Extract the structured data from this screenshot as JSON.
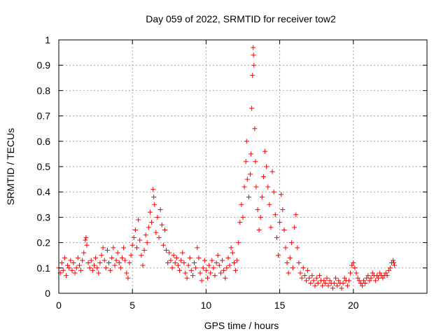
{
  "chart_data": {
    "type": "scatter",
    "title": "Day 059 of 2022, SRMTID for receiver tow2",
    "xlabel": "GPS time / hours",
    "ylabel": "SRMTID / TECUs",
    "xlim": [
      0,
      25
    ],
    "ylim": [
      0,
      1
    ],
    "xticks": [
      0,
      5,
      10,
      15,
      20
    ],
    "yticks": [
      0,
      0.1,
      0.2,
      0.3,
      0.4,
      0.5,
      0.6,
      0.7,
      0.8,
      0.9,
      1
    ],
    "xtick_labels": [
      "0",
      "5",
      "10",
      "15",
      "20"
    ],
    "ytick_labels": [
      "0",
      "0.1",
      "0.2",
      "0.3",
      "0.4",
      "0.5",
      "0.6",
      "0.7",
      "0.8",
      "0.9",
      "1"
    ],
    "grid": true,
    "marker": "+",
    "color": "#ff0000",
    "series": [
      {
        "name": "SRMTID",
        "points": [
          [
            0.0,
            0.1
          ],
          [
            0.1,
            0.08
          ],
          [
            0.2,
            0.12
          ],
          [
            0.3,
            0.09
          ],
          [
            0.4,
            0.14
          ],
          [
            0.5,
            0.07
          ],
          [
            0.6,
            0.11
          ],
          [
            0.7,
            0.1
          ],
          [
            0.8,
            0.13
          ],
          [
            0.9,
            0.09
          ],
          [
            1.0,
            0.12
          ],
          [
            1.1,
            0.08
          ],
          [
            1.2,
            0.1
          ],
          [
            1.3,
            0.14
          ],
          [
            1.4,
            0.11
          ],
          [
            1.5,
            0.09
          ],
          [
            1.6,
            0.13
          ],
          [
            1.7,
            0.16
          ],
          [
            1.8,
            0.21
          ],
          [
            1.85,
            0.22
          ],
          [
            1.9,
            0.19
          ],
          [
            2.0,
            0.12
          ],
          [
            2.1,
            0.1
          ],
          [
            2.2,
            0.13
          ],
          [
            2.3,
            0.09
          ],
          [
            2.4,
            0.11
          ],
          [
            2.5,
            0.14
          ],
          [
            2.6,
            0.1
          ],
          [
            2.7,
            0.08
          ],
          [
            2.8,
            0.12
          ],
          [
            2.9,
            0.15
          ],
          [
            3.0,
            0.18
          ],
          [
            3.1,
            0.13
          ],
          [
            3.2,
            0.1
          ],
          [
            3.3,
            0.17
          ],
          [
            3.4,
            0.12
          ],
          [
            3.5,
            0.09
          ],
          [
            3.6,
            0.14
          ],
          [
            3.7,
            0.18
          ],
          [
            3.8,
            0.11
          ],
          [
            3.9,
            0.13
          ],
          [
            4.0,
            0.16
          ],
          [
            4.1,
            0.12
          ],
          [
            4.2,
            0.1
          ],
          [
            4.3,
            0.14
          ],
          [
            4.4,
            0.18
          ],
          [
            4.5,
            0.13
          ],
          [
            4.6,
            0.08
          ],
          [
            4.7,
            0.06
          ],
          [
            4.8,
            0.12
          ],
          [
            4.9,
            0.15
          ],
          [
            5.0,
            0.19
          ],
          [
            5.1,
            0.22
          ],
          [
            5.2,
            0.25
          ],
          [
            5.3,
            0.18
          ],
          [
            5.4,
            0.29
          ],
          [
            5.5,
            0.21
          ],
          [
            5.6,
            0.15
          ],
          [
            5.7,
            0.11
          ],
          [
            5.8,
            0.17
          ],
          [
            5.9,
            0.23
          ],
          [
            6.0,
            0.2
          ],
          [
            6.1,
            0.26
          ],
          [
            6.2,
            0.32
          ],
          [
            6.3,
            0.28
          ],
          [
            6.4,
            0.41
          ],
          [
            6.45,
            0.38
          ],
          [
            6.5,
            0.35
          ],
          [
            6.6,
            0.24
          ],
          [
            6.7,
            0.3
          ],
          [
            6.8,
            0.22
          ],
          [
            6.9,
            0.33
          ],
          [
            7.0,
            0.27
          ],
          [
            7.1,
            0.19
          ],
          [
            7.2,
            0.25
          ],
          [
            7.3,
            0.17
          ],
          [
            7.4,
            0.12
          ],
          [
            7.5,
            0.16
          ],
          [
            7.6,
            0.13
          ],
          [
            7.7,
            0.1
          ],
          [
            7.8,
            0.15
          ],
          [
            7.9,
            0.12
          ],
          [
            8.0,
            0.14
          ],
          [
            8.1,
            0.11
          ],
          [
            8.2,
            0.09
          ],
          [
            8.3,
            0.13
          ],
          [
            8.4,
            0.16
          ],
          [
            8.5,
            0.12
          ],
          [
            8.6,
            0.08
          ],
          [
            8.7,
            0.06
          ],
          [
            8.8,
            0.11
          ],
          [
            8.9,
            0.14
          ],
          [
            9.0,
            0.09
          ],
          [
            9.1,
            0.07
          ],
          [
            9.2,
            0.12
          ],
          [
            9.3,
            0.1
          ],
          [
            9.4,
            0.18
          ],
          [
            9.5,
            0.14
          ],
          [
            9.6,
            0.08
          ],
          [
            9.7,
            0.05
          ],
          [
            9.8,
            0.1
          ],
          [
            9.9,
            0.13
          ],
          [
            10.0,
            0.09
          ],
          [
            10.1,
            0.06
          ],
          [
            10.2,
            0.11
          ],
          [
            10.3,
            0.08
          ],
          [
            10.4,
            0.13
          ],
          [
            10.5,
            0.1
          ],
          [
            10.6,
            0.07
          ],
          [
            10.7,
            0.12
          ],
          [
            10.8,
            0.15
          ],
          [
            10.9,
            0.11
          ],
          [
            11.0,
            0.08
          ],
          [
            11.1,
            0.13
          ],
          [
            11.2,
            0.09
          ],
          [
            11.3,
            0.06
          ],
          [
            11.4,
            0.1
          ],
          [
            11.5,
            0.14
          ],
          [
            11.6,
            0.11
          ],
          [
            11.7,
            0.18
          ],
          [
            11.8,
            0.16
          ],
          [
            11.9,
            0.12
          ],
          [
            12.0,
            0.09
          ],
          [
            12.1,
            0.13
          ],
          [
            12.2,
            0.2
          ],
          [
            12.3,
            0.28
          ],
          [
            12.4,
            0.35
          ],
          [
            12.5,
            0.3
          ],
          [
            12.6,
            0.42
          ],
          [
            12.7,
            0.52
          ],
          [
            12.75,
            0.6
          ],
          [
            12.8,
            0.45
          ],
          [
            12.9,
            0.38
          ],
          [
            13.0,
            0.47
          ],
          [
            13.05,
            0.55
          ],
          [
            13.1,
            0.73
          ],
          [
            13.15,
            0.86
          ],
          [
            13.2,
            0.97
          ],
          [
            13.22,
            0.94
          ],
          [
            13.25,
            0.9
          ],
          [
            13.3,
            0.65
          ],
          [
            13.35,
            0.52
          ],
          [
            13.4,
            0.42
          ],
          [
            13.5,
            0.33
          ],
          [
            13.6,
            0.25
          ],
          [
            13.7,
            0.3
          ],
          [
            13.8,
            0.38
          ],
          [
            13.9,
            0.46
          ],
          [
            14.0,
            0.56
          ],
          [
            14.1,
            0.5
          ],
          [
            14.2,
            0.42
          ],
          [
            14.3,
            0.35
          ],
          [
            14.4,
            0.26
          ],
          [
            14.5,
            0.48
          ],
          [
            14.6,
            0.4
          ],
          [
            14.7,
            0.31
          ],
          [
            14.8,
            0.22
          ],
          [
            14.9,
            0.15
          ],
          [
            15.0,
            0.28
          ],
          [
            15.1,
            0.39
          ],
          [
            15.2,
            0.33
          ],
          [
            15.3,
            0.25
          ],
          [
            15.4,
            0.18
          ],
          [
            15.5,
            0.12
          ],
          [
            15.6,
            0.08
          ],
          [
            15.7,
            0.14
          ],
          [
            15.8,
            0.2
          ],
          [
            15.9,
            0.1
          ],
          [
            16.0,
            0.26
          ],
          [
            16.1,
            0.31
          ],
          [
            16.2,
            0.18
          ],
          [
            16.3,
            0.12
          ],
          [
            16.4,
            0.08
          ],
          [
            16.5,
            0.06
          ],
          [
            16.6,
            0.1
          ],
          [
            16.7,
            0.07
          ],
          [
            16.8,
            0.05
          ],
          [
            16.9,
            0.09
          ],
          [
            17.0,
            0.06
          ],
          [
            17.1,
            0.04
          ],
          [
            17.2,
            0.07
          ],
          [
            17.3,
            0.05
          ],
          [
            17.4,
            0.03
          ],
          [
            17.5,
            0.06
          ],
          [
            17.6,
            0.04
          ],
          [
            17.7,
            0.07
          ],
          [
            17.8,
            0.05
          ],
          [
            17.9,
            0.03
          ],
          [
            18.0,
            0.05
          ],
          [
            18.1,
            0.04
          ],
          [
            18.2,
            0.06
          ],
          [
            18.3,
            0.03
          ],
          [
            18.4,
            0.05
          ],
          [
            18.5,
            0.04
          ],
          [
            18.6,
            0.02
          ],
          [
            18.7,
            0.04
          ],
          [
            18.8,
            0.06
          ],
          [
            18.9,
            0.03
          ],
          [
            19.0,
            0.05
          ],
          [
            19.1,
            0.04
          ],
          [
            19.2,
            0.02
          ],
          [
            19.3,
            0.04
          ],
          [
            19.4,
            0.06
          ],
          [
            19.5,
            0.05
          ],
          [
            19.6,
            0.03
          ],
          [
            19.7,
            0.05
          ],
          [
            19.8,
            0.08
          ],
          [
            19.9,
            0.11
          ],
          [
            20.0,
            0.12
          ],
          [
            20.1,
            0.1
          ],
          [
            20.2,
            0.08
          ],
          [
            20.3,
            0.06
          ],
          [
            20.4,
            0.05
          ],
          [
            20.5,
            0.04
          ],
          [
            20.6,
            0.03
          ],
          [
            20.7,
            0.05
          ],
          [
            20.8,
            0.04
          ],
          [
            20.9,
            0.06
          ],
          [
            21.0,
            0.07
          ],
          [
            21.1,
            0.05
          ],
          [
            21.2,
            0.06
          ],
          [
            21.3,
            0.08
          ],
          [
            21.4,
            0.07
          ],
          [
            21.5,
            0.05
          ],
          [
            21.6,
            0.07
          ],
          [
            21.7,
            0.06
          ],
          [
            21.8,
            0.08
          ],
          [
            21.9,
            0.07
          ],
          [
            22.0,
            0.06
          ],
          [
            22.1,
            0.07
          ],
          [
            22.2,
            0.08
          ],
          [
            22.3,
            0.07
          ],
          [
            22.4,
            0.09
          ],
          [
            22.5,
            0.1
          ],
          [
            22.6,
            0.12
          ],
          [
            22.7,
            0.13
          ],
          [
            22.75,
            0.12
          ],
          [
            22.8,
            0.11
          ]
        ]
      }
    ]
  }
}
